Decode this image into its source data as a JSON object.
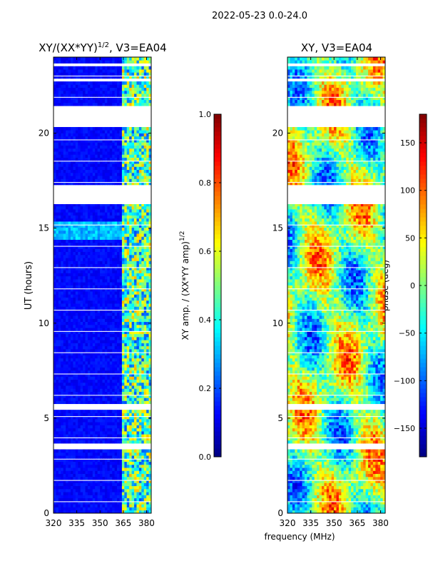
{
  "suptitle": "2022-05-23 0.0-24.0",
  "xlabel_shared": "frequency (MHz)",
  "colors": {
    "jet": [
      "#00007f",
      "#0000ff",
      "#007fff",
      "#00ffff",
      "#7fff7f",
      "#ffff00",
      "#ff7f00",
      "#ff0000",
      "#7f0000"
    ],
    "background": "#ffffff",
    "frame": "#000000"
  },
  "chart_data": [
    {
      "type": "heatmap",
      "title": "XY/(XX*YY)",
      "title_sup": "1/2",
      "title_rest": ", V3=EA04",
      "ylabel": "UT (hours)",
      "xlim": [
        320,
        383
      ],
      "ylim": [
        0,
        24
      ],
      "xticks": [
        320,
        335,
        350,
        365,
        380
      ],
      "yticks": [
        0,
        5,
        10,
        15,
        20
      ],
      "colorbar": {
        "label": "XY amp. / (XX*YY amp)",
        "label_sup": "1/2",
        "range": [
          0.0,
          1.0
        ],
        "ticks": [
          0.0,
          0.2,
          0.4,
          0.6,
          0.8,
          1.0
        ],
        "tick_labels": [
          "0.0",
          "0.2",
          "0.4",
          "0.6",
          "0.8",
          "1.0"
        ]
      },
      "gaps_hours": [
        [
          3.35,
          3.65
        ],
        [
          5.45,
          5.7
        ],
        [
          16.25,
          17.25
        ],
        [
          20.25,
          21.4
        ],
        [
          22.7,
          22.85
        ],
        [
          23.55,
          23.7
        ]
      ],
      "band_mhz": [
        363,
        383
      ],
      "description_values": {
        "background_amp": 0.1,
        "band_amp": 0.45
      }
    },
    {
      "type": "heatmap",
      "title": "XY, V3=EA04",
      "ylabel": "",
      "xlim": [
        320,
        383
      ],
      "ylim": [
        0,
        24
      ],
      "xticks": [
        320,
        335,
        350,
        365,
        380
      ],
      "yticks": [
        0,
        5,
        10,
        15,
        20
      ],
      "colorbar": {
        "label": "phase (deg)",
        "range": [
          -180,
          180
        ],
        "ticks": [
          -150,
          -100,
          -50,
          0,
          50,
          100,
          150
        ],
        "tick_labels": [
          "−150",
          "−100",
          "−50",
          "0",
          "50",
          "100",
          "150"
        ]
      },
      "gaps_hours": [
        [
          3.35,
          3.65
        ],
        [
          5.45,
          5.7
        ],
        [
          16.25,
          17.25
        ],
        [
          20.25,
          21.4
        ],
        [
          22.7,
          22.85
        ],
        [
          23.55,
          23.7
        ]
      ]
    }
  ]
}
